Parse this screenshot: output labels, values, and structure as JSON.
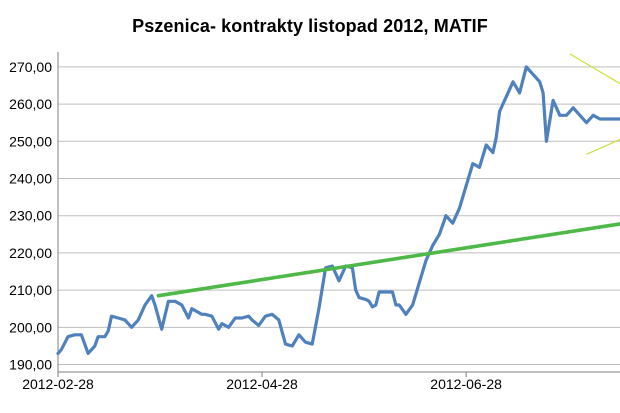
{
  "chart_data": {
    "type": "line",
    "title": "Pszenica- kontrakty listopad 2012, MATIF",
    "xlabel": "",
    "ylabel": "",
    "x_tick_labels": [
      "2012-02-28",
      "2012-04-28",
      "2012-06-28"
    ],
    "y_tick_labels": [
      "190,00",
      "200,00",
      "210,00",
      "220,00",
      "230,00",
      "240,00",
      "250,00",
      "260,00",
      "270,00"
    ],
    "y_tick_values": [
      190,
      200,
      210,
      220,
      230,
      240,
      250,
      260,
      270
    ],
    "ylim": [
      188,
      274
    ],
    "xlim_days": [
      0,
      168
    ],
    "grid": true,
    "legend": "none",
    "colors": {
      "price": "#4F81BD",
      "trend": "#4EB848",
      "marker": "#C8E13C",
      "grid": "#BFBFBF",
      "axis": "#7F7F7F"
    },
    "series": [
      {
        "x_days": [
          0,
          1,
          3,
          5,
          7,
          9,
          11,
          12,
          14,
          15,
          16,
          18,
          20,
          22,
          24,
          26,
          28,
          29,
          31,
          33,
          35,
          37,
          39,
          40,
          42,
          43,
          44,
          46,
          48,
          49,
          51,
          53,
          55,
          57,
          58,
          60,
          62,
          64,
          66,
          68,
          70,
          72,
          74,
          76,
          78,
          80,
          82,
          84,
          86,
          88,
          89,
          90,
          92,
          93,
          94,
          95,
          96,
          97,
          98,
          100,
          101,
          102,
          104,
          106,
          108,
          110,
          112,
          114,
          116,
          118,
          120,
          122,
          124,
          126,
          128,
          130,
          131,
          132,
          133,
          134,
          136,
          138,
          140,
          142,
          144,
          145,
          146,
          148,
          150,
          152,
          154,
          156,
          158,
          160,
          162,
          163,
          164,
          165,
          166,
          167,
          168
        ],
        "y": [
          193,
          194,
          197.5,
          198,
          198,
          193,
          195,
          197.5,
          197.5,
          199,
          203,
          202.5,
          202,
          200,
          202,
          206,
          208.5,
          206,
          199.5,
          207,
          207,
          206,
          202.5,
          205,
          204,
          203.5,
          203.5,
          203,
          199.5,
          201,
          200,
          202.5,
          202.5,
          203,
          202,
          200.5,
          203,
          203.5,
          202,
          195.5,
          195,
          198,
          196,
          195.5,
          205,
          216,
          216.5,
          212.5,
          216.5,
          216,
          210,
          208,
          207.5,
          207,
          205.5,
          206,
          209.5,
          209.5,
          209.5,
          209.5,
          206,
          206,
          203.5,
          206,
          212,
          218,
          222,
          225,
          230,
          228,
          232,
          238,
          244,
          243,
          249,
          247,
          251,
          258,
          260,
          262,
          266,
          263,
          270,
          268,
          266,
          263,
          250,
          261,
          257,
          257,
          259,
          257,
          255,
          257,
          256,
          256,
          256,
          256,
          256,
          256,
          256
        ]
      },
      {
        "x_days": [
          30,
          168
        ],
        "y": [
          208.5,
          227.8
        ]
      }
    ]
  }
}
